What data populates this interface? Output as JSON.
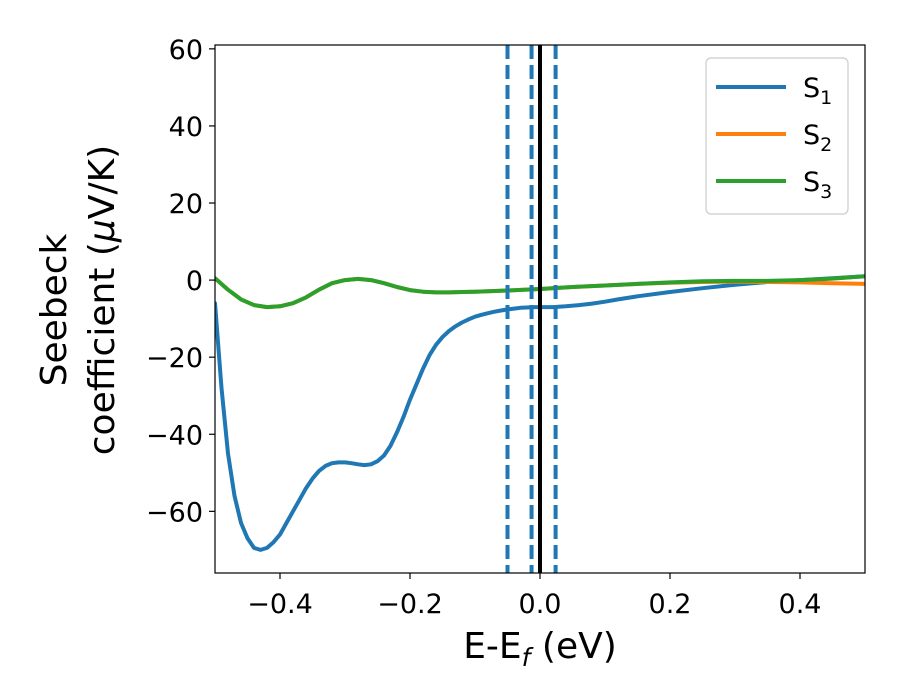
{
  "chart_data": {
    "type": "line",
    "title": "",
    "xlabel": {
      "main": "E-E",
      "sub": "f",
      "unit": " (eV)"
    },
    "ylabel": {
      "line1": "Seebeck",
      "line2_text": "coefficient  (",
      "line2_mu": "μ",
      "line2_rest": "V/K)"
    },
    "xlim": [
      -0.5,
      0.5
    ],
    "ylim": [
      -76,
      61
    ],
    "xticks": [
      -0.4,
      -0.2,
      0.0,
      0.2,
      0.4
    ],
    "xtick_labels": [
      "−0.4",
      "−0.2",
      "0.0",
      "0.2",
      "0.4"
    ],
    "yticks": [
      -60,
      -40,
      -20,
      0,
      20,
      40,
      60
    ],
    "ytick_labels": [
      "−60",
      "−40",
      "−20",
      "0",
      "20",
      "40",
      "60"
    ],
    "grid": false,
    "legend_position": "top-right",
    "series": [
      {
        "name_main": "S",
        "name_sub": "1",
        "color": "#1f77b4",
        "x": [
          -0.5,
          -0.49,
          -0.48,
          -0.47,
          -0.46,
          -0.45,
          -0.44,
          -0.43,
          -0.42,
          -0.41,
          -0.4,
          -0.39,
          -0.38,
          -0.37,
          -0.36,
          -0.35,
          -0.34,
          -0.33,
          -0.32,
          -0.31,
          -0.3,
          -0.29,
          -0.28,
          -0.27,
          -0.26,
          -0.25,
          -0.24,
          -0.23,
          -0.22,
          -0.21,
          -0.2,
          -0.19,
          -0.18,
          -0.17,
          -0.16,
          -0.15,
          -0.14,
          -0.13,
          -0.12,
          -0.11,
          -0.1,
          -0.09,
          -0.08,
          -0.07,
          -0.06,
          -0.05,
          -0.04,
          -0.03,
          -0.02,
          -0.01,
          0.0,
          0.02,
          0.04,
          0.06,
          0.08,
          0.1,
          0.12,
          0.15,
          0.2,
          0.25,
          0.3,
          0.35,
          0.4,
          0.45,
          0.5
        ],
        "y": [
          -6,
          -28,
          -45,
          -56,
          -63,
          -67,
          -69.5,
          -70,
          -69.5,
          -68,
          -66,
          -63,
          -60,
          -57,
          -54,
          -51.5,
          -49.5,
          -48.2,
          -47.5,
          -47.3,
          -47.3,
          -47.5,
          -47.8,
          -48,
          -47.8,
          -47,
          -45.5,
          -43,
          -39.5,
          -35.5,
          -31,
          -27,
          -23,
          -19.5,
          -16.8,
          -14.8,
          -13.2,
          -12,
          -11,
          -10.2,
          -9.5,
          -9,
          -8.6,
          -8.2,
          -7.9,
          -7.6,
          -7.4,
          -7.2,
          -7.1,
          -7,
          -7,
          -7,
          -6.8,
          -6.5,
          -6.1,
          -5.6,
          -5,
          -4.2,
          -3.1,
          -2.1,
          -1.2,
          -0.5,
          0,
          0.5,
          1
        ]
      },
      {
        "name_main": "S",
        "name_sub": "2",
        "color": "#ff7f0e",
        "x": [
          -0.5,
          -0.48,
          -0.46,
          -0.44,
          -0.42,
          -0.4,
          -0.38,
          -0.36,
          -0.34,
          -0.32,
          -0.3,
          -0.28,
          -0.26,
          -0.24,
          -0.22,
          -0.2,
          -0.18,
          -0.16,
          -0.14,
          -0.12,
          -0.1,
          -0.05,
          0.0,
          0.05,
          0.1,
          0.15,
          0.2,
          0.25,
          0.3,
          0.35,
          0.4,
          0.45,
          0.5
        ],
        "y": [
          0.5,
          -2.5,
          -5,
          -6.5,
          -7,
          -6.8,
          -6,
          -4.5,
          -2.5,
          -0.8,
          0,
          0.3,
          0,
          -0.8,
          -1.8,
          -2.6,
          -3,
          -3.2,
          -3.2,
          -3.1,
          -3,
          -2.7,
          -2.3,
          -1.8,
          -1.4,
          -1,
          -0.7,
          -0.5,
          -0.4,
          -0.5,
          -0.6,
          -0.8,
          -1
        ]
      },
      {
        "name_main": "S",
        "name_sub": "3",
        "color": "#2ca02c",
        "x": [
          -0.5,
          -0.48,
          -0.46,
          -0.44,
          -0.42,
          -0.4,
          -0.38,
          -0.36,
          -0.34,
          -0.32,
          -0.3,
          -0.28,
          -0.26,
          -0.24,
          -0.22,
          -0.2,
          -0.18,
          -0.16,
          -0.14,
          -0.12,
          -0.1,
          -0.05,
          0.0,
          0.05,
          0.1,
          0.15,
          0.2,
          0.25,
          0.3,
          0.35,
          0.4,
          0.45,
          0.5
        ],
        "y": [
          0.5,
          -2.5,
          -5,
          -6.5,
          -7,
          -6.8,
          -6,
          -4.5,
          -2.5,
          -0.8,
          0,
          0.3,
          0,
          -0.8,
          -1.8,
          -2.6,
          -3,
          -3.2,
          -3.2,
          -3.1,
          -3,
          -2.7,
          -2.3,
          -1.8,
          -1.4,
          -1,
          -0.6,
          -0.3,
          -0.2,
          -0.2,
          0,
          0.4,
          1
        ]
      }
    ],
    "vlines": [
      {
        "x": -0.05,
        "style": "dashed",
        "color": "#1f77b4"
      },
      {
        "x": -0.013,
        "style": "dashed",
        "color": "#1f77b4"
      },
      {
        "x": 0.0,
        "style": "solid",
        "color": "#000000"
      },
      {
        "x": 0.024,
        "style": "dashed",
        "color": "#1f77b4"
      }
    ]
  }
}
